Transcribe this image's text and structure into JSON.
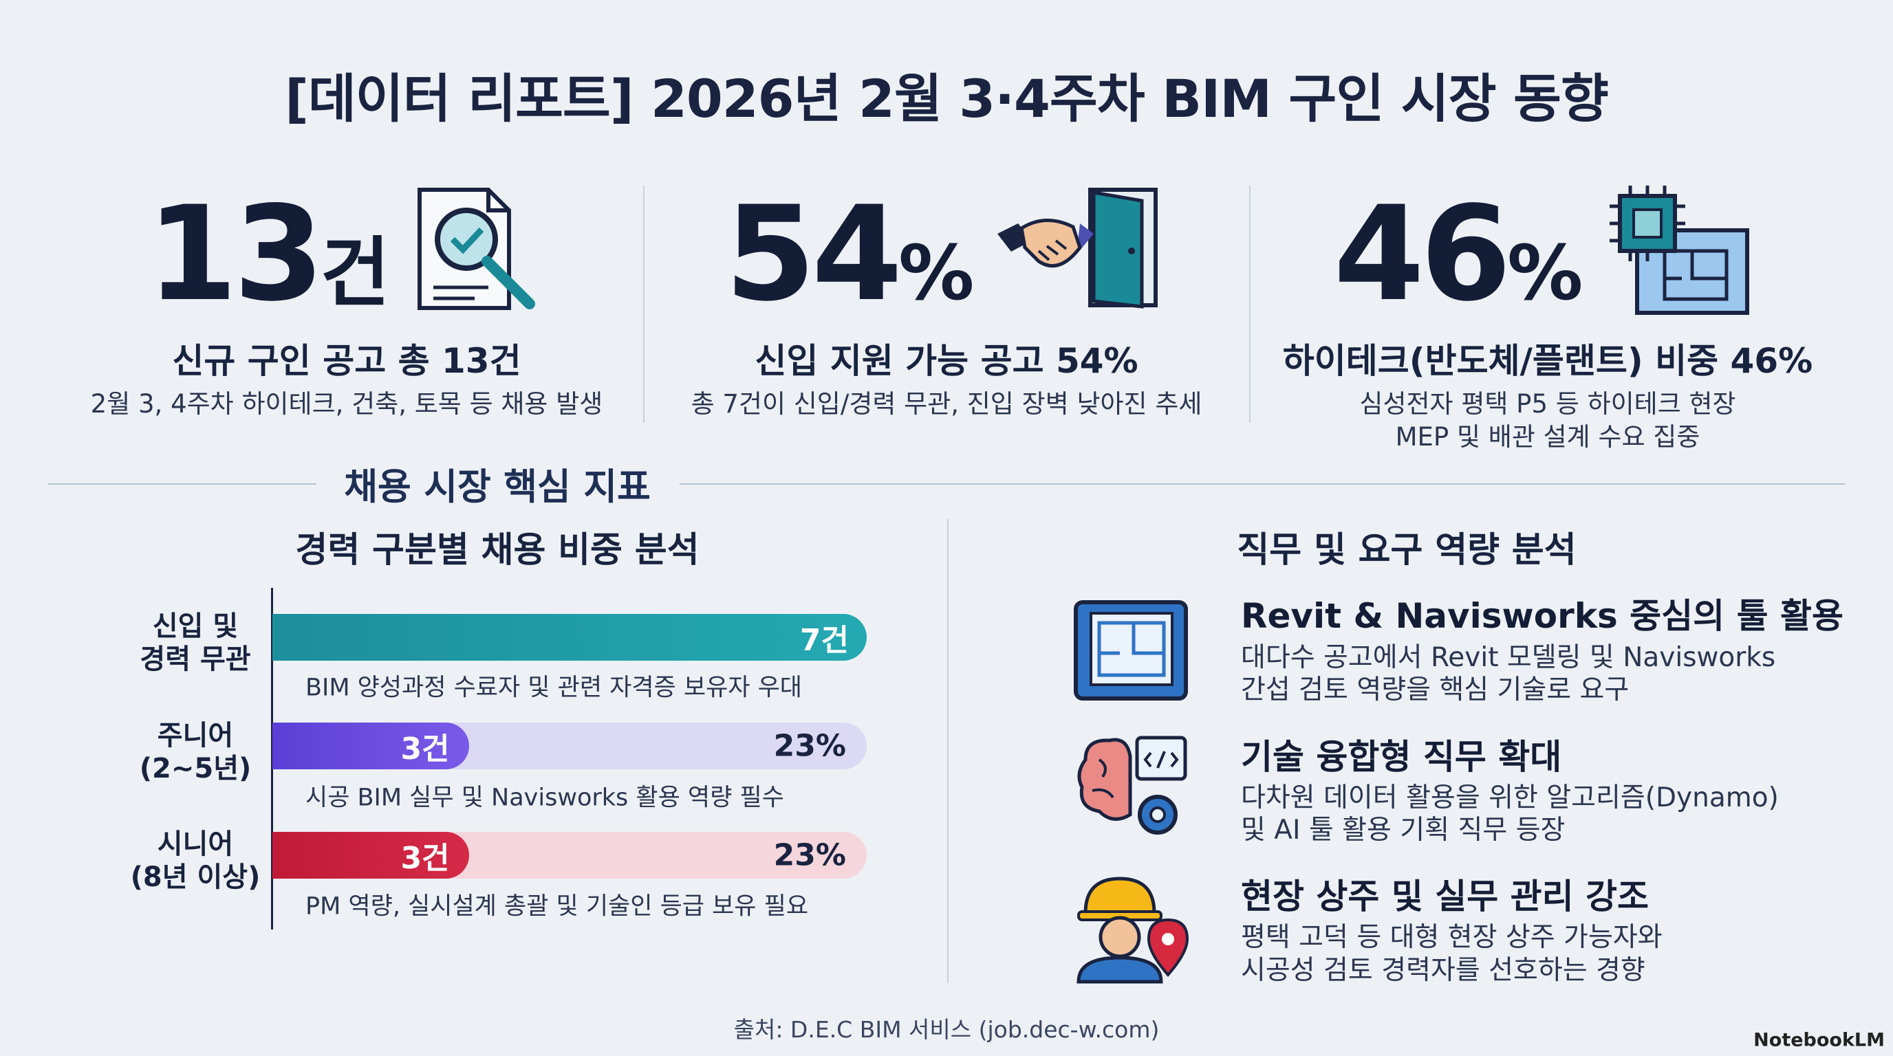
{
  "header": {
    "title": "[데이터 리포트] 2026년 2월 3·4주차 BIM 구인 시장 동향"
  },
  "kpis": [
    {
      "number": "13",
      "unit": "건",
      "headline": "신규 구인 공고 총 13건",
      "lines": [
        "2월 3, 4주차 하이테크, 건축, 토목 등 채용 발생"
      ]
    },
    {
      "number": "54",
      "unit": "%",
      "headline": "신입 지원 가능 공고 54%",
      "lines": [
        "총 7건이 신입/경력 무관, 진입 장벽 낮아진 추세"
      ]
    },
    {
      "number": "46",
      "unit": "%",
      "headline": "하이테크(반도체/플랜트) 비중 46%",
      "lines": [
        "심성전자 평택 P5 등 하이테크 현장",
        "MEP 및 배관 설계 수요 집중"
      ]
    }
  ],
  "section_title": "채용 시장 핵심 지표",
  "experience": {
    "title": "경력 구분별 채용 비중 분석",
    "rows": [
      {
        "label_lines": [
          "신입 및",
          "경력 무관"
        ],
        "count": "7건",
        "caption": "BIM 양성과정 수료자 및 관련 자격증 보유자 우대"
      },
      {
        "label_lines": [
          "주니어",
          "(2~5년)"
        ],
        "count": "3건",
        "share": "23%",
        "caption": "시공 BIM 실무 및 Navisworks 활용 역량 필수"
      },
      {
        "label_lines": [
          "시니어",
          "(8년 이상)"
        ],
        "count": "3건",
        "share": "23%",
        "caption": "PM 역량, 실시설계 총괄 및 기술인 등급 보유 필요"
      }
    ]
  },
  "roles": {
    "title": "직무 및 요구 역량 분석",
    "items": [
      {
        "heading": "Revit & Navisworks 중심의 툴 활용",
        "lines": [
          "대다수 공고에서 Revit 모델링 및 Navisworks",
          "간섭 검토 역량을 핵심 기술로 요구"
        ]
      },
      {
        "heading": "기술 융합형 직무 확대",
        "lines": [
          "다차원 데이터 활용을 위한 알고리즘(Dynamo)",
          "및 AI 툴 활용 기획 직무 등장"
        ]
      },
      {
        "heading": "현장 상주 및 실무 관리 강조",
        "lines": [
          "평택 고덕 등 대형 현장 상주 가능자와",
          "시공성 검토 경력자를 선호하는 경향"
        ]
      }
    ]
  },
  "footer": {
    "source": "출처: D.E.C BIM 서비스 (job.dec-w.com)",
    "brand": "NotebookLM"
  }
}
